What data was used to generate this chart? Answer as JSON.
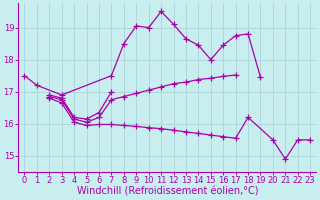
{
  "background_color": "#c8eef0",
  "grid_color": "#b0d8da",
  "line_color": "#aa00aa",
  "marker": "+",
  "markersize": 4,
  "linewidth": 0.9,
  "markeredgewidth": 0.9,
  "xlabel": "Windchill (Refroidissement éolien,°C)",
  "xlabel_fontsize": 7,
  "tick_fontsize": 6,
  "xlim": [
    -0.5,
    23.5
  ],
  "ylim": [
    14.5,
    19.75
  ],
  "yticks": [
    15,
    16,
    17,
    18,
    19
  ],
  "xticks": [
    0,
    1,
    2,
    3,
    4,
    5,
    6,
    7,
    8,
    9,
    10,
    11,
    12,
    13,
    14,
    15,
    16,
    17,
    18,
    19,
    20,
    21,
    22,
    23
  ],
  "series": [
    {
      "x": [
        0,
        1,
        3,
        7,
        8,
        9,
        10,
        11,
        12,
        13,
        14,
        15,
        16,
        17,
        18,
        19
      ],
      "y": [
        17.5,
        17.2,
        16.9,
        17.5,
        18.5,
        19.05,
        19.0,
        19.5,
        19.1,
        18.65,
        18.45,
        18.0,
        18.45,
        18.75,
        18.8,
        17.45
      ]
    },
    {
      "x": [
        2,
        3,
        4,
        5,
        6,
        7
      ],
      "y": [
        16.9,
        16.8,
        16.2,
        16.15,
        16.35,
        17.0
      ]
    },
    {
      "x": [
        2,
        3,
        4,
        5,
        6,
        7,
        8,
        9,
        10,
        11,
        12,
        13,
        14,
        15,
        16,
        17
      ],
      "y": [
        16.85,
        16.75,
        16.15,
        16.05,
        16.2,
        16.75,
        16.85,
        16.95,
        17.05,
        17.15,
        17.25,
        17.3,
        17.38,
        17.42,
        17.48,
        17.52
      ]
    },
    {
      "x": [
        2,
        3,
        4,
        5,
        6,
        7,
        8,
        9,
        10,
        11,
        12,
        13,
        14,
        15,
        16,
        17,
        18,
        20,
        21,
        22,
        23
      ],
      "y": [
        16.8,
        16.65,
        16.05,
        15.95,
        15.98,
        15.98,
        15.95,
        15.92,
        15.88,
        15.85,
        15.8,
        15.75,
        15.7,
        15.65,
        15.6,
        15.55,
        16.2,
        15.5,
        14.9,
        15.5,
        15.5
      ]
    }
  ]
}
